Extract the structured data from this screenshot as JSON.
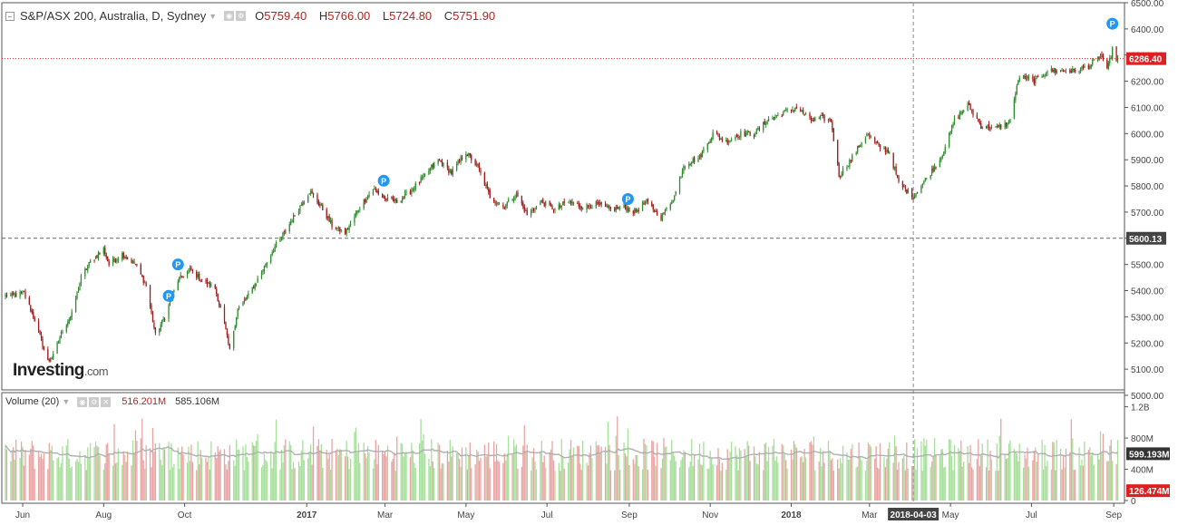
{
  "header": {
    "symbol": "S&P/ASX 200, Australia, D, Sydney",
    "open_label": "O",
    "open": "5759.40",
    "high_label": "H",
    "high": "5766.00",
    "low_label": "L",
    "low": "5724.80",
    "close_label": "C",
    "close": "5751.90"
  },
  "volume_header": {
    "label": "Volume (20)",
    "value": "516.201M",
    "ma_value": "585.106M"
  },
  "logo": {
    "text": "Investing",
    "suffix": ".com"
  },
  "colors": {
    "up": "#2e8b2e",
    "down": "#a01818",
    "vol_up": "#a6df9a",
    "vol_down": "#eaa3a3",
    "ma": "#b0b0b0",
    "price_line": "#e02020",
    "badge": "#2196f3"
  },
  "chart_data": {
    "type": "candlestick",
    "price_axis": {
      "min": 5000,
      "max": 6500,
      "ticks": [
        "5000.00",
        "5100.00",
        "5200.00",
        "5300.00",
        "5400.00",
        "5500.00",
        "5600.00",
        "5700.00",
        "5800.00",
        "5900.00",
        "6000.00",
        "6100.00",
        "6200.00",
        "6300.00",
        "6400.00",
        "6500.00"
      ]
    },
    "volume_axis": {
      "ticks": [
        "0",
        "400M",
        "800M",
        "1.2B"
      ]
    },
    "x_labels": [
      "Jun",
      "Aug",
      "Oct",
      "2017",
      "Mar",
      "May",
      "Jul",
      "Sep",
      "Nov",
      "2018",
      "Mar",
      "May",
      "Jul",
      "Sep"
    ],
    "current_price": "6286.40",
    "crosshair_price": "5600.13",
    "crosshair_date": "2018-04-03",
    "current_volume": "126.474M",
    "volume_ma": "599.193M",
    "dividend_badge": "P",
    "waypoints": [
      {
        "d": "2016-05-23",
        "p": 5380
      },
      {
        "d": "2016-06-02",
        "p": 5390
      },
      {
        "d": "2016-06-10",
        "p": 5290
      },
      {
        "d": "2016-06-20",
        "p": 5130
      },
      {
        "d": "2016-06-24",
        "p": 5150
      },
      {
        "d": "2016-07-01",
        "p": 5250
      },
      {
        "d": "2016-07-08",
        "p": 5310
      },
      {
        "d": "2016-07-15",
        "p": 5450
      },
      {
        "d": "2016-07-22",
        "p": 5510
      },
      {
        "d": "2016-08-01",
        "p": 5560
      },
      {
        "d": "2016-08-05",
        "p": 5500
      },
      {
        "d": "2016-08-15",
        "p": 5540
      },
      {
        "d": "2016-08-25",
        "p": 5500
      },
      {
        "d": "2016-09-02",
        "p": 5420
      },
      {
        "d": "2016-09-09",
        "p": 5230
      },
      {
        "d": "2016-09-16",
        "p": 5300
      },
      {
        "d": "2016-09-26",
        "p": 5440
      },
      {
        "d": "2016-10-05",
        "p": 5480
      },
      {
        "d": "2016-10-14",
        "p": 5440
      },
      {
        "d": "2016-10-24",
        "p": 5410
      },
      {
        "d": "2016-10-31",
        "p": 5270
      },
      {
        "d": "2016-11-04",
        "p": 5170
      },
      {
        "d": "2016-11-10",
        "p": 5330
      },
      {
        "d": "2016-11-18",
        "p": 5380
      },
      {
        "d": "2016-11-28",
        "p": 5470
      },
      {
        "d": "2016-12-07",
        "p": 5560
      },
      {
        "d": "2016-12-15",
        "p": 5620
      },
      {
        "d": "2016-12-23",
        "p": 5690
      },
      {
        "d": "2017-01-03",
        "p": 5780
      },
      {
        "d": "2017-01-12",
        "p": 5720
      },
      {
        "d": "2017-01-20",
        "p": 5650
      },
      {
        "d": "2017-01-30",
        "p": 5620
      },
      {
        "d": "2017-02-10",
        "p": 5720
      },
      {
        "d": "2017-02-20",
        "p": 5790
      },
      {
        "d": "2017-03-01",
        "p": 5750
      },
      {
        "d": "2017-03-10",
        "p": 5740
      },
      {
        "d": "2017-03-20",
        "p": 5780
      },
      {
        "d": "2017-03-31",
        "p": 5840
      },
      {
        "d": "2017-04-10",
        "p": 5900
      },
      {
        "d": "2017-04-20",
        "p": 5850
      },
      {
        "d": "2017-05-01",
        "p": 5930
      },
      {
        "d": "2017-05-10",
        "p": 5870
      },
      {
        "d": "2017-05-19",
        "p": 5760
      },
      {
        "d": "2017-05-29",
        "p": 5720
      },
      {
        "d": "2017-06-08",
        "p": 5770
      },
      {
        "d": "2017-06-16",
        "p": 5690
      },
      {
        "d": "2017-06-27",
        "p": 5740
      },
      {
        "d": "2017-07-07",
        "p": 5710
      },
      {
        "d": "2017-07-17",
        "p": 5740
      },
      {
        "d": "2017-07-28",
        "p": 5720
      },
      {
        "d": "2017-08-08",
        "p": 5730
      },
      {
        "d": "2017-08-18",
        "p": 5710
      },
      {
        "d": "2017-08-28",
        "p": 5720
      },
      {
        "d": "2017-09-05",
        "p": 5700
      },
      {
        "d": "2017-09-14",
        "p": 5740
      },
      {
        "d": "2017-09-25",
        "p": 5680
      },
      {
        "d": "2017-10-05",
        "p": 5760
      },
      {
        "d": "2017-10-12",
        "p": 5880
      },
      {
        "d": "2017-10-24",
        "p": 5910
      },
      {
        "d": "2017-11-03",
        "p": 6000
      },
      {
        "d": "2017-11-13",
        "p": 5970
      },
      {
        "d": "2017-11-24",
        "p": 6000
      },
      {
        "d": "2017-12-04",
        "p": 6000
      },
      {
        "d": "2017-12-14",
        "p": 6050
      },
      {
        "d": "2017-12-26",
        "p": 6080
      },
      {
        "d": "2018-01-05",
        "p": 6100
      },
      {
        "d": "2018-01-16",
        "p": 6050
      },
      {
        "d": "2018-01-24",
        "p": 6060
      },
      {
        "d": "2018-01-31",
        "p": 6050
      },
      {
        "d": "2018-02-06",
        "p": 5840
      },
      {
        "d": "2018-02-15",
        "p": 5900
      },
      {
        "d": "2018-02-27",
        "p": 6000
      },
      {
        "d": "2018-03-08",
        "p": 5950
      },
      {
        "d": "2018-03-16",
        "p": 5930
      },
      {
        "d": "2018-03-23",
        "p": 5810
      },
      {
        "d": "2018-04-03",
        "p": 5760
      },
      {
        "d": "2018-04-13",
        "p": 5830
      },
      {
        "d": "2018-04-24",
        "p": 5910
      },
      {
        "d": "2018-05-04",
        "p": 6050
      },
      {
        "d": "2018-05-14",
        "p": 6110
      },
      {
        "d": "2018-05-24",
        "p": 6030
      },
      {
        "d": "2018-06-04",
        "p": 6020
      },
      {
        "d": "2018-06-14",
        "p": 6040
      },
      {
        "d": "2018-06-22",
        "p": 6220
      },
      {
        "d": "2018-07-03",
        "p": 6200
      },
      {
        "d": "2018-07-13",
        "p": 6240
      },
      {
        "d": "2018-07-24",
        "p": 6240
      },
      {
        "d": "2018-08-03",
        "p": 6240
      },
      {
        "d": "2018-08-14",
        "p": 6260
      },
      {
        "d": "2018-08-23",
        "p": 6300
      },
      {
        "d": "2018-08-27",
        "p": 6240
      },
      {
        "d": "2018-08-31",
        "p": 6320
      },
      {
        "d": "2018-09-03",
        "p": 6286
      }
    ]
  }
}
